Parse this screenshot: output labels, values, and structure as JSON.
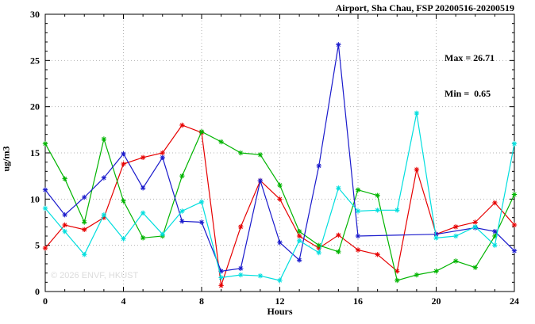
{
  "title": "Airport, Sha Chau, FSP 20200516-20200519",
  "annotation": {
    "max_label": "Max = 26.71",
    "min_label": "Min =  0.65"
  },
  "watermark": "© 2026 ENVF, HKUST",
  "axes": {
    "xlabel": "Hours",
    "ylabel": "ug/m3"
  },
  "chart_data": {
    "type": "line",
    "title": "Airport, Sha Chau, FSP 20200516-20200519",
    "xlabel": "Hours",
    "ylabel": "ug/m3",
    "xlim": [
      0,
      24
    ],
    "ylim": [
      0,
      30
    ],
    "x_ticks": [
      0,
      4,
      8,
      12,
      16,
      20,
      24
    ],
    "y_ticks": [
      0,
      5,
      10,
      15,
      20,
      25,
      30
    ],
    "grid": true,
    "legend": "none",
    "marker": "asterisk",
    "stats": {
      "max": 26.71,
      "min": 0.65
    },
    "x": [
      0,
      1,
      2,
      3,
      4,
      5,
      6,
      7,
      8,
      9,
      10,
      11,
      12,
      13,
      14,
      15,
      16,
      17,
      18,
      19,
      20,
      21,
      22,
      23,
      24
    ],
    "series": [
      {
        "name": "series-red",
        "color": "#e60000",
        "values": [
          4.7,
          7.2,
          6.7,
          8.0,
          13.8,
          14.5,
          15.0,
          18.0,
          17.2,
          0.65,
          7.0,
          12.0,
          10.0,
          6.0,
          4.7,
          6.1,
          4.5,
          4.0,
          2.2,
          13.2,
          6.2,
          7.0,
          7.5,
          9.6,
          7.2
        ]
      },
      {
        "name": "series-green",
        "color": "#00b400",
        "values": [
          16.0,
          12.2,
          7.5,
          16.5,
          9.8,
          5.8,
          6.0,
          12.5,
          17.3,
          16.2,
          15.0,
          14.8,
          11.5,
          6.5,
          5.0,
          4.3,
          11.0,
          10.4,
          1.2,
          1.8,
          2.2,
          3.3,
          2.6,
          6.0,
          10.5
        ]
      },
      {
        "name": "series-blue",
        "color": "#1a1acc",
        "values": [
          11.0,
          8.3,
          10.2,
          12.3,
          14.9,
          11.2,
          14.5,
          7.6,
          7.5,
          2.2,
          2.5,
          12.0,
          5.3,
          3.4,
          13.6,
          26.71,
          6.0,
          null,
          null,
          null,
          6.2,
          null,
          6.9,
          6.5,
          4.4
        ]
      },
      {
        "name": "series-cyan",
        "color": "#00dede",
        "values": [
          9.0,
          6.5,
          4.0,
          8.3,
          5.7,
          8.5,
          6.2,
          8.7,
          9.7,
          1.5,
          1.8,
          1.7,
          1.2,
          5.5,
          4.2,
          11.2,
          8.7,
          8.8,
          8.8,
          19.3,
          5.8,
          6.0,
          7.0,
          5.0,
          16.0
        ]
      }
    ]
  }
}
